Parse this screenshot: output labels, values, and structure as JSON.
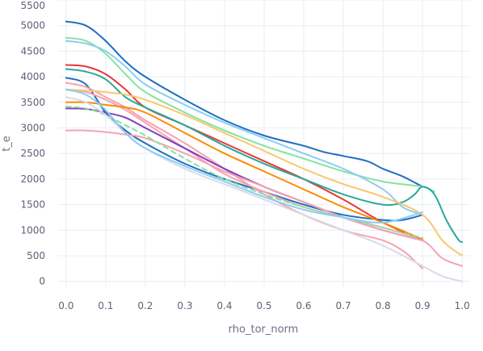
{
  "chart_data": {
    "type": "line",
    "title": "",
    "xlabel": "rho_tor_norm",
    "ylabel": "t_e",
    "xlim": [
      -0.02,
      1.02
    ],
    "ylim": [
      -100,
      5500
    ],
    "xticks": [
      "0.0",
      "0.1",
      "0.2",
      "0.3",
      "0.4",
      "0.5",
      "0.6",
      "0.7",
      "0.8",
      "0.9",
      "1.0"
    ],
    "yticks": [
      "0",
      "500",
      "1000",
      "1500",
      "2000",
      "2500",
      "3000",
      "3500",
      "4000",
      "4500",
      "5000",
      "5500"
    ],
    "grid": true,
    "legend": "none",
    "series": [
      {
        "color": "#1f6fbf",
        "dash": "",
        "points": [
          [
            0,
            5080
          ],
          [
            0.05,
            5000
          ],
          [
            0.1,
            4700
          ],
          [
            0.15,
            4300
          ],
          [
            0.2,
            4000
          ],
          [
            0.3,
            3550
          ],
          [
            0.4,
            3150
          ],
          [
            0.5,
            2850
          ],
          [
            0.6,
            2650
          ],
          [
            0.65,
            2530
          ],
          [
            0.7,
            2450
          ],
          [
            0.76,
            2350
          ],
          [
            0.8,
            2200
          ],
          [
            0.85,
            2050
          ],
          [
            0.9,
            1850
          ]
        ]
      },
      {
        "color": "#86e39e",
        "dash": "",
        "points": [
          [
            0,
            4760
          ],
          [
            0.05,
            4700
          ],
          [
            0.1,
            4450
          ],
          [
            0.15,
            4050
          ],
          [
            0.2,
            3700
          ],
          [
            0.3,
            3300
          ],
          [
            0.4,
            2950
          ],
          [
            0.5,
            2650
          ],
          [
            0.6,
            2400
          ],
          [
            0.7,
            2150
          ],
          [
            0.8,
            1950
          ],
          [
            0.9,
            1850
          ],
          [
            0.93,
            1750
          ]
        ]
      },
      {
        "color": "#8ccdf5",
        "dash": "",
        "points": [
          [
            0,
            4700
          ],
          [
            0.05,
            4650
          ],
          [
            0.1,
            4500
          ],
          [
            0.15,
            4200
          ],
          [
            0.2,
            3850
          ],
          [
            0.3,
            3450
          ],
          [
            0.4,
            3100
          ],
          [
            0.5,
            2800
          ],
          [
            0.6,
            2500
          ],
          [
            0.7,
            2200
          ],
          [
            0.8,
            1800
          ],
          [
            0.85,
            1450
          ],
          [
            0.9,
            1300
          ]
        ]
      },
      {
        "color": "#e53935",
        "dash": "",
        "points": [
          [
            0,
            4230
          ],
          [
            0.05,
            4200
          ],
          [
            0.1,
            4050
          ],
          [
            0.15,
            3750
          ],
          [
            0.2,
            3400
          ],
          [
            0.3,
            3050
          ],
          [
            0.4,
            2700
          ],
          [
            0.5,
            2350
          ],
          [
            0.6,
            2000
          ],
          [
            0.7,
            1600
          ],
          [
            0.8,
            1150
          ],
          [
            0.9,
            800
          ]
        ]
      },
      {
        "color": "#2aa89a",
        "dash": "",
        "points": [
          [
            0,
            4150
          ],
          [
            0.05,
            4100
          ],
          [
            0.1,
            3950
          ],
          [
            0.15,
            3600
          ],
          [
            0.2,
            3400
          ],
          [
            0.3,
            3050
          ],
          [
            0.4,
            2650
          ],
          [
            0.5,
            2300
          ],
          [
            0.6,
            2000
          ],
          [
            0.7,
            1700
          ],
          [
            0.8,
            1500
          ],
          [
            0.85,
            1550
          ],
          [
            0.88,
            1700
          ],
          [
            0.9,
            1850
          ],
          [
            0.93,
            1700
          ],
          [
            0.96,
            1200
          ],
          [
            0.99,
            820
          ],
          [
            1.0,
            770
          ]
        ]
      },
      {
        "color": "#1f6fbf",
        "dash": "",
        "points": [
          [
            0,
            3980
          ],
          [
            0.05,
            3850
          ],
          [
            0.1,
            3300
          ],
          [
            0.15,
            2950
          ],
          [
            0.2,
            2700
          ],
          [
            0.3,
            2300
          ],
          [
            0.4,
            2000
          ],
          [
            0.5,
            1750
          ],
          [
            0.6,
            1500
          ],
          [
            0.7,
            1300
          ],
          [
            0.8,
            1200
          ],
          [
            0.85,
            1200
          ],
          [
            0.9,
            1300
          ]
        ]
      },
      {
        "color": "#f4a3b0",
        "dash": "",
        "points": [
          [
            0,
            3880
          ],
          [
            0.05,
            3800
          ],
          [
            0.1,
            3600
          ],
          [
            0.15,
            3400
          ],
          [
            0.2,
            3150
          ],
          [
            0.3,
            2700
          ],
          [
            0.4,
            2200
          ],
          [
            0.5,
            1700
          ],
          [
            0.6,
            1300
          ],
          [
            0.7,
            1000
          ],
          [
            0.8,
            800
          ],
          [
            0.85,
            600
          ],
          [
            0.88,
            400
          ],
          [
            0.9,
            250
          ]
        ]
      },
      {
        "color": "#f4a3b0",
        "dash": "",
        "points": [
          [
            0,
            3750
          ],
          [
            0.05,
            3700
          ],
          [
            0.1,
            3550
          ],
          [
            0.15,
            3350
          ],
          [
            0.2,
            3100
          ],
          [
            0.3,
            2600
          ],
          [
            0.4,
            2100
          ],
          [
            0.5,
            1750
          ],
          [
            0.6,
            1450
          ],
          [
            0.7,
            1250
          ],
          [
            0.8,
            1050
          ],
          [
            0.9,
            800
          ],
          [
            0.95,
            450
          ],
          [
            1.0,
            300
          ]
        ]
      },
      {
        "color": "#f7c86e",
        "dash": "",
        "points": [
          [
            0,
            3750
          ],
          [
            0.05,
            3730
          ],
          [
            0.1,
            3700
          ],
          [
            0.15,
            3650
          ],
          [
            0.2,
            3550
          ],
          [
            0.3,
            3250
          ],
          [
            0.4,
            2900
          ],
          [
            0.5,
            2550
          ],
          [
            0.6,
            2200
          ],
          [
            0.7,
            1900
          ],
          [
            0.8,
            1650
          ],
          [
            0.9,
            1300
          ],
          [
            0.95,
            800
          ],
          [
            0.99,
            550
          ],
          [
            1.0,
            520
          ]
        ]
      },
      {
        "color": "#fb8c00",
        "dash": "",
        "points": [
          [
            0,
            3500
          ],
          [
            0.05,
            3500
          ],
          [
            0.1,
            3450
          ],
          [
            0.15,
            3400
          ],
          [
            0.2,
            3300
          ],
          [
            0.3,
            2900
          ],
          [
            0.4,
            2500
          ],
          [
            0.5,
            2150
          ],
          [
            0.6,
            1800
          ],
          [
            0.7,
            1450
          ],
          [
            0.8,
            1150
          ],
          [
            0.9,
            820
          ]
        ]
      },
      {
        "color": "#7e3fbf",
        "dash": "",
        "points": [
          [
            0,
            3380
          ],
          [
            0.05,
            3370
          ],
          [
            0.1,
            3300
          ],
          [
            0.15,
            3200
          ],
          [
            0.2,
            3000
          ],
          [
            0.3,
            2600
          ],
          [
            0.4,
            2200
          ],
          [
            0.5,
            1850
          ],
          [
            0.6,
            1550
          ],
          [
            0.7,
            1250
          ],
          [
            0.8,
            1000
          ],
          [
            0.9,
            800
          ]
        ]
      },
      {
        "color": "#f4a3b0",
        "dash": "",
        "points": [
          [
            0,
            2950
          ],
          [
            0.05,
            2950
          ],
          [
            0.1,
            2920
          ],
          [
            0.15,
            2870
          ],
          [
            0.2,
            2800
          ],
          [
            0.3,
            2500
          ],
          [
            0.4,
            2150
          ],
          [
            0.5,
            1850
          ],
          [
            0.6,
            1550
          ],
          [
            0.7,
            1250
          ],
          [
            0.8,
            1000
          ],
          [
            0.9,
            800
          ]
        ]
      },
      {
        "color": "#86e39e",
        "dash": "6,5",
        "points": [
          [
            0,
            3420
          ],
          [
            0.05,
            3380
          ],
          [
            0.1,
            3250
          ],
          [
            0.15,
            3050
          ],
          [
            0.2,
            2850
          ],
          [
            0.3,
            2400
          ],
          [
            0.4,
            2000
          ],
          [
            0.5,
            1700
          ],
          [
            0.6,
            1450
          ],
          [
            0.7,
            1250
          ],
          [
            0.8,
            1050
          ],
          [
            0.9,
            850
          ]
        ]
      },
      {
        "color": "#d9dbe7",
        "dash": "",
        "points": [
          [
            0,
            3600
          ],
          [
            0.05,
            3500
          ],
          [
            0.1,
            3250
          ],
          [
            0.15,
            2900
          ],
          [
            0.2,
            2600
          ],
          [
            0.3,
            2200
          ],
          [
            0.4,
            1900
          ],
          [
            0.5,
            1600
          ],
          [
            0.6,
            1300
          ],
          [
            0.7,
            1000
          ],
          [
            0.8,
            700
          ],
          [
            0.9,
            300
          ],
          [
            0.95,
            100
          ],
          [
            1.0,
            0
          ]
        ]
      },
      {
        "color": "#8ccdf5",
        "dash": "",
        "points": [
          [
            0,
            3750
          ],
          [
            0.05,
            3650
          ],
          [
            0.1,
            3350
          ],
          [
            0.15,
            2900
          ],
          [
            0.2,
            2600
          ],
          [
            0.3,
            2250
          ],
          [
            0.4,
            1950
          ],
          [
            0.5,
            1650
          ],
          [
            0.6,
            1400
          ],
          [
            0.7,
            1250
          ],
          [
            0.8,
            1150
          ],
          [
            0.9,
            1350
          ]
        ]
      }
    ]
  }
}
